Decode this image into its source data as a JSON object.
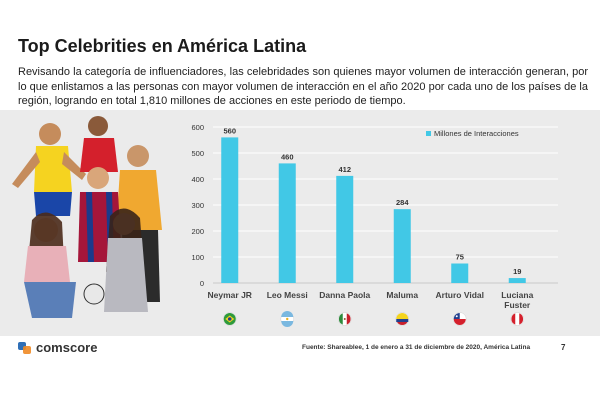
{
  "title": "Top Celebrities en América Latina",
  "description": "Revisando la categoría de influenciadores, las celebridades son quienes mayor volumen de interacción generan, por lo que enlistamos a las personas con mayor volumen de interacción en el año 2020 por cada uno de los países de la región, logrando en total 1,810 millones de acciones en este periodo de tiempo.",
  "footer": {
    "brand": "comscore",
    "source": "Fuente: Shareablee, 1 de enero a 31 de diciembre de 2020, América Latina",
    "page_number": "7"
  },
  "colors": {
    "bar": "#41c8e6",
    "band": "#ebebeb",
    "grid": "#ffffff",
    "logo_blue": "#2f6fb7",
    "logo_orange": "#f08a24"
  },
  "chart_data": {
    "type": "bar",
    "categories": [
      "Neymar JR",
      "Leo Messi",
      "Danna Paola",
      "Maluma",
      "Arturo Vidal",
      "Luciana Fuster"
    ],
    "series": [
      {
        "name": "Millones de Interacciones",
        "values": [
          560,
          460,
          412,
          284,
          75,
          19
        ]
      }
    ],
    "value_labels": [
      "560",
      "460",
      "412",
      "284",
      "75",
      "19"
    ],
    "y_ticks": [
      "0",
      "100",
      "200",
      "300",
      "400",
      "500",
      "600"
    ],
    "ylim": [
      0,
      600
    ],
    "grid": true,
    "legend_position": "top-right",
    "flags": [
      "brazil-flag-icon",
      "argentina-flag-icon",
      "mexico-flag-icon",
      "colombia-flag-icon",
      "chile-flag-icon",
      "peru-flag-icon"
    ]
  }
}
